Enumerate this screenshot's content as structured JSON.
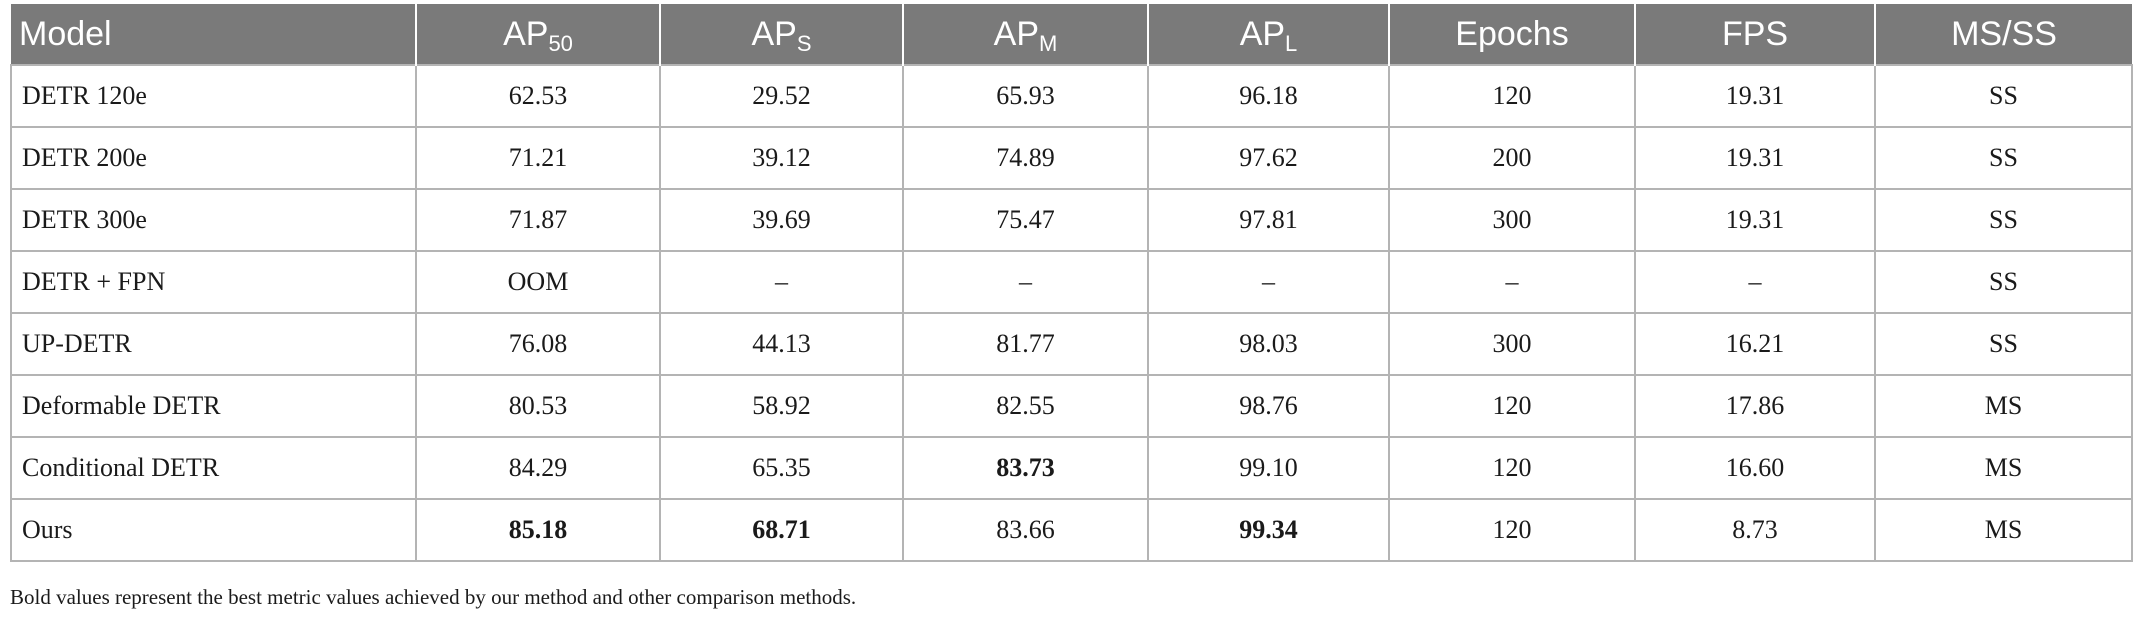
{
  "table": {
    "headers": [
      {
        "base": "Model",
        "sub": ""
      },
      {
        "base": "AP",
        "sub": "50"
      },
      {
        "base": "AP",
        "sub": "S"
      },
      {
        "base": "AP",
        "sub": "M"
      },
      {
        "base": "AP",
        "sub": "L"
      },
      {
        "base": "Epochs",
        "sub": ""
      },
      {
        "base": "FPS",
        "sub": ""
      },
      {
        "base": "MS/SS",
        "sub": ""
      }
    ],
    "rows": [
      {
        "cells": [
          "DETR 120e",
          "62.53",
          "29.52",
          "65.93",
          "96.18",
          "120",
          "19.31",
          "SS"
        ],
        "bold": []
      },
      {
        "cells": [
          "DETR 200e",
          "71.21",
          "39.12",
          "74.89",
          "97.62",
          "200",
          "19.31",
          "SS"
        ],
        "bold": []
      },
      {
        "cells": [
          "DETR 300e",
          "71.87",
          "39.69",
          "75.47",
          "97.81",
          "300",
          "19.31",
          "SS"
        ],
        "bold": []
      },
      {
        "cells": [
          "DETR + FPN",
          "OOM",
          "–",
          "–",
          "–",
          "–",
          "–",
          "SS"
        ],
        "bold": []
      },
      {
        "cells": [
          "UP-DETR",
          "76.08",
          "44.13",
          "81.77",
          "98.03",
          "300",
          "16.21",
          "SS"
        ],
        "bold": []
      },
      {
        "cells": [
          "Deformable DETR",
          "80.53",
          "58.92",
          "82.55",
          "98.76",
          "120",
          "17.86",
          "MS"
        ],
        "bold": []
      },
      {
        "cells": [
          "Conditional DETR",
          "84.29",
          "65.35",
          "83.73",
          "99.10",
          "120",
          "16.60",
          "MS"
        ],
        "bold": [
          3
        ]
      },
      {
        "cells": [
          "Ours",
          "85.18",
          "68.71",
          "83.66",
          "99.34",
          "120",
          "8.73",
          "MS"
        ],
        "bold": [
          1,
          2,
          4
        ]
      }
    ]
  },
  "footnote": "Bold values represent the best metric values achieved by our method and other comparison methods."
}
